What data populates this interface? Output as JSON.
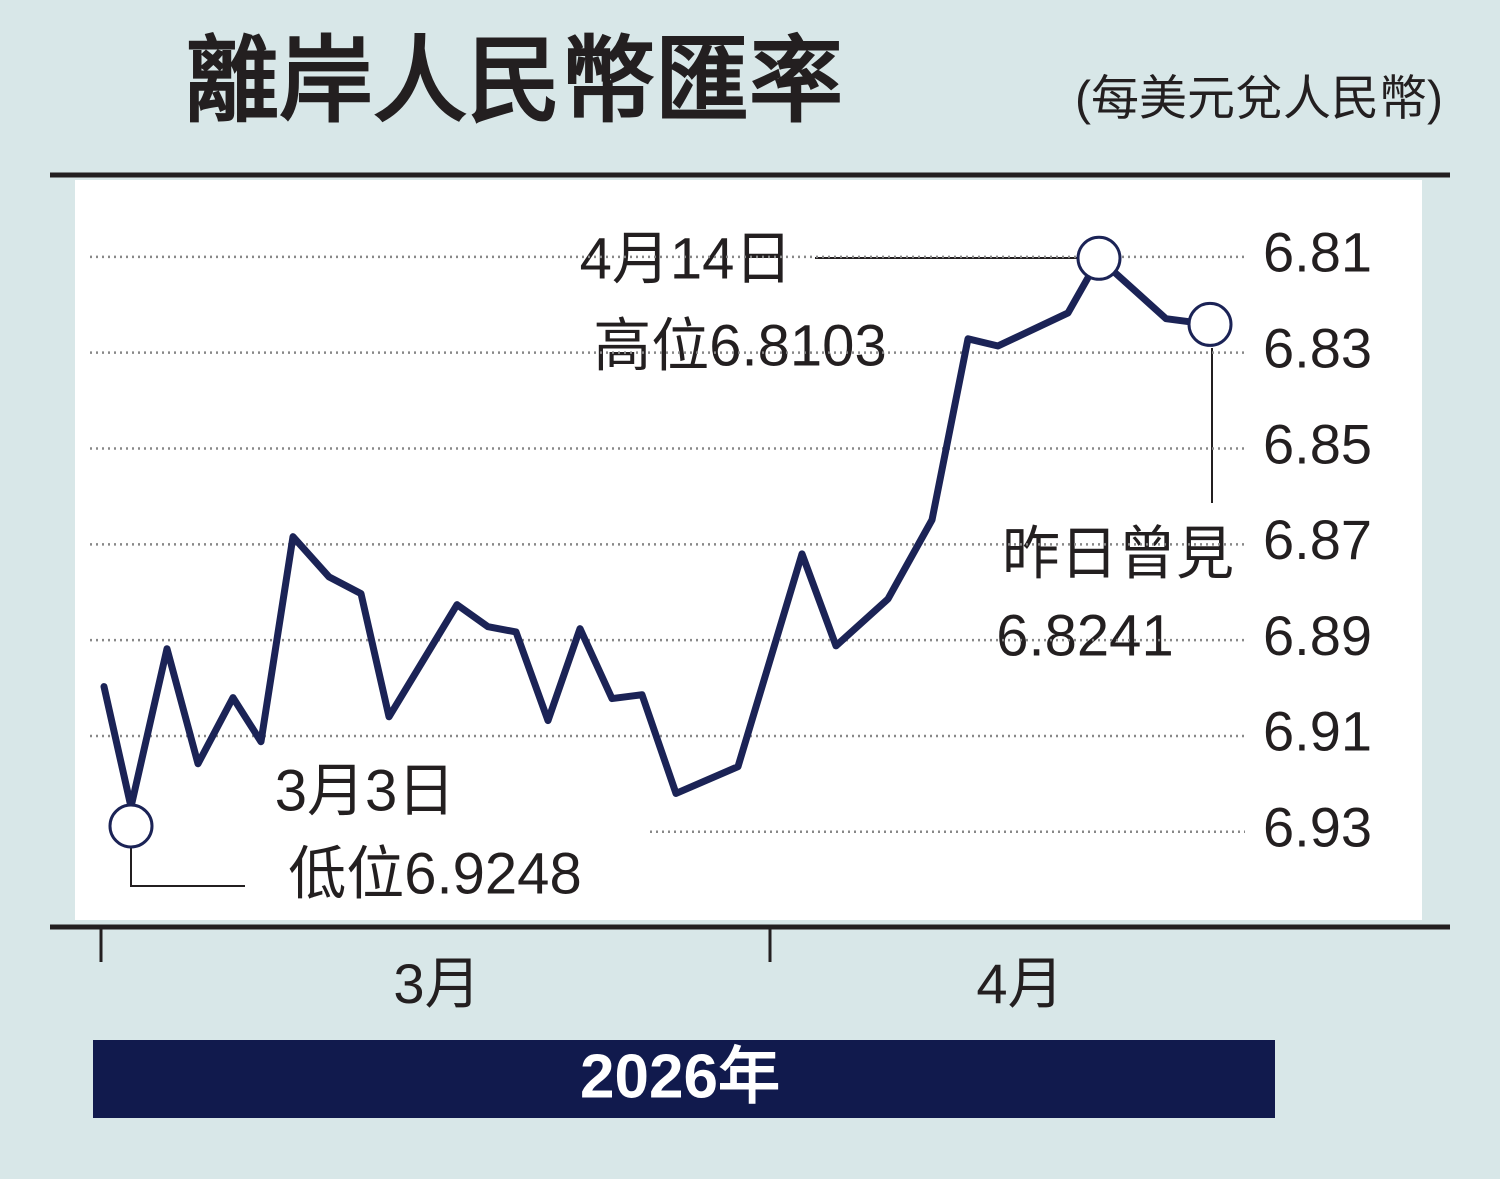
{
  "chart_data": {
    "type": "line",
    "title": "離岸人民幣匯率",
    "subtitle": "(每美元兌人民幣)",
    "categories": [
      null,
      null,
      null,
      null,
      null,
      null,
      null,
      null,
      null,
      null,
      null,
      null,
      null,
      null,
      null,
      null,
      null,
      null,
      null,
      null,
      null,
      null,
      null,
      null,
      null,
      null,
      null,
      null,
      null
    ],
    "series": [
      {
        "name": null,
        "color": "#1b2356",
        "values": [
          6.8997,
          6.9248,
          6.8918,
          6.9158,
          6.902,
          6.9112,
          6.8684,
          6.8768,
          6.8803,
          6.906,
          6.8826,
          6.8872,
          6.8883,
          6.9068,
          6.8876,
          6.9022,
          6.9014,
          6.922,
          6.9164,
          6.872,
          6.8912,
          6.8814,
          6.8649,
          6.8271,
          6.8286,
          6.8217,
          6.8103,
          6.8229,
          6.8241
        ]
      }
    ],
    "ylim": [
      6.795,
      6.948
    ],
    "y_inverted": true,
    "yticks": [
      6.81,
      6.83,
      6.85,
      6.87,
      6.89,
      6.91,
      6.93
    ],
    "grid": true,
    "month_labels": [
      "3月",
      "4月"
    ],
    "x_axis_label": "2026年",
    "annotations": {
      "high": [
        "4月14日",
        "高位6.8103"
      ],
      "latest": [
        "昨日曾見",
        "6.8241"
      ],
      "low": [
        "3月3日",
        "低位6.9248"
      ]
    }
  }
}
